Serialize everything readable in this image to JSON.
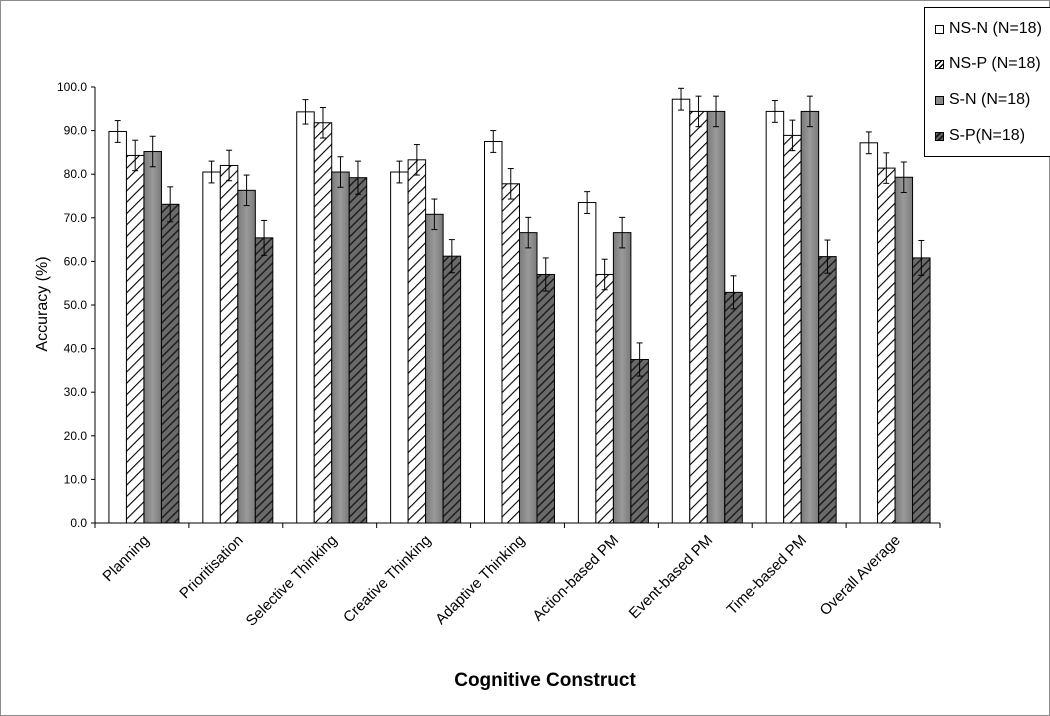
{
  "chart_data": {
    "type": "bar",
    "title": "",
    "xlabel": "Cognitive Construct",
    "ylabel": "Accuracy (%)",
    "ylim": [
      0,
      100
    ],
    "yticks": [
      "0.0",
      "10.0",
      "20.0",
      "30.0",
      "40.0",
      "50.0",
      "60.0",
      "70.0",
      "80.0",
      "90.0",
      "100.0"
    ],
    "categories": [
      "Planning",
      "Prioritisation",
      "Selective Thinking",
      "Creative Thinking",
      "Adaptive Thinking",
      "Action-based PM",
      "Event-based PM",
      "Time-based PM",
      "Overall Average"
    ],
    "series": [
      {
        "name": "NS-N (N=18)",
        "fill": "white",
        "values": [
          89.8,
          80.5,
          94.3,
          80.5,
          87.5,
          73.5,
          97.2,
          94.4,
          87.2
        ],
        "errors": [
          2.5,
          2.5,
          2.8,
          2.5,
          2.5,
          2.5,
          2.5,
          2.5,
          2.5
        ]
      },
      {
        "name": "NS-P (N=18)",
        "fill": "hatch-light",
        "values": [
          84.3,
          82.0,
          91.8,
          83.3,
          77.8,
          57.0,
          94.4,
          88.9,
          81.4
        ],
        "errors": [
          3.5,
          3.5,
          3.5,
          3.5,
          3.5,
          3.5,
          3.5,
          3.5,
          3.5
        ]
      },
      {
        "name": "S-N (N=18)",
        "fill": "gray",
        "values": [
          85.2,
          76.3,
          80.5,
          70.8,
          66.6,
          66.6,
          94.4,
          94.4,
          79.3
        ],
        "errors": [
          3.5,
          3.5,
          3.5,
          3.5,
          3.5,
          3.5,
          3.5,
          3.5,
          3.5
        ]
      },
      {
        "name": "S-P(N=18)",
        "fill": "hatch-dark",
        "values": [
          73.1,
          65.4,
          79.2,
          61.2,
          57.0,
          37.5,
          52.9,
          61.1,
          60.8
        ],
        "errors": [
          4.0,
          4.0,
          3.8,
          3.8,
          3.8,
          3.8,
          3.8,
          3.8,
          4.0
        ]
      }
    ],
    "legend": "top-right",
    "grid": false
  },
  "legend_items": [
    {
      "label": "NS-N (N=18)"
    },
    {
      "label": "NS-P (N=18)"
    },
    {
      "label": "S-N (N=18)"
    },
    {
      "label": "S-P(N=18)"
    }
  ]
}
